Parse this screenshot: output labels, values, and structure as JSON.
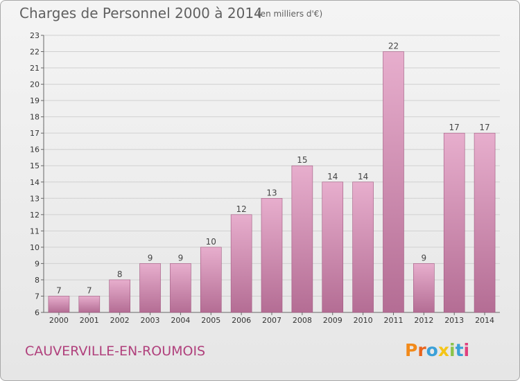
{
  "header": {
    "title": "Charges de Personnel 2000 à 2014",
    "subtitle": "(en milliers d'€)"
  },
  "footer": {
    "commune": "CAUVERVILLE-EN-ROUMOIS",
    "logo_letters": [
      "P",
      "r",
      "o",
      "x",
      "i",
      "t",
      "i"
    ],
    "logo_colors": [
      "#f28a1a",
      "#e8641c",
      "#3aa0d8",
      "#f5c518",
      "#8bc34a",
      "#3aa0d8",
      "#e0407e"
    ]
  },
  "colors": {
    "bar_top": "#e7aecd",
    "bar_bottom": "#b46d94",
    "bar_border": "#a0587f",
    "grid": "#d0d0d0",
    "axis": "#666666"
  },
  "chart_data": {
    "type": "bar",
    "categories": [
      "2000",
      "2001",
      "2002",
      "2003",
      "2004",
      "2005",
      "2006",
      "2007",
      "2008",
      "2009",
      "2010",
      "2011",
      "2012",
      "2013",
      "2014"
    ],
    "values": [
      7,
      7,
      8,
      9,
      9,
      10,
      12,
      13,
      15,
      14,
      14,
      22,
      9,
      17,
      17
    ],
    "ylim": [
      6,
      23
    ],
    "yticks": [
      6,
      7,
      8,
      9,
      10,
      11,
      12,
      13,
      14,
      15,
      16,
      17,
      18,
      19,
      20,
      21,
      22,
      23
    ],
    "grid": true
  }
}
